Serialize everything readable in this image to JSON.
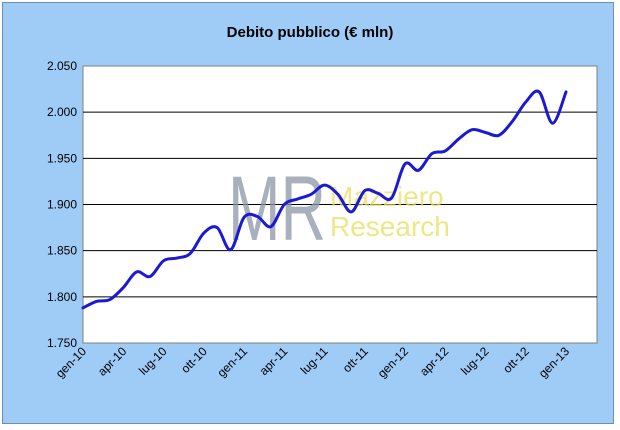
{
  "chart_data": {
    "type": "line",
    "title": "Debito pubblico (€ mln)",
    "xlabel": "",
    "ylabel": "",
    "ylim": [
      1750,
      2050
    ],
    "yticks": [
      1750,
      1800,
      1850,
      1900,
      1950,
      2000,
      2050
    ],
    "ytick_labels": [
      "1.750",
      "1.800",
      "1.850",
      "1.900",
      "1.950",
      "2.000",
      "2.050"
    ],
    "xtick_labels": [
      "gen-10",
      "apr-10",
      "lug-10",
      "ott-10",
      "gen-11",
      "apr-11",
      "lug-11",
      "ott-11",
      "gen-12",
      "apr-12",
      "lug-12",
      "ott-12",
      "gen-13"
    ],
    "grid": "horizontal",
    "legend": "none",
    "series": [
      {
        "x": [
          "gen-10",
          "feb-10",
          "mar-10",
          "apr-10",
          "mag-10",
          "giu-10",
          "lug-10",
          "ago-10",
          "set-10",
          "ott-10",
          "nov-10",
          "dic-10",
          "gen-11",
          "feb-11",
          "mar-11",
          "apr-11",
          "mag-11",
          "giu-11",
          "lug-11",
          "ago-11",
          "set-11",
          "ott-11",
          "nov-11",
          "dic-11",
          "gen-12",
          "feb-12",
          "mar-12",
          "apr-12",
          "mag-12",
          "giu-12",
          "lug-12",
          "ago-12",
          "set-12",
          "ott-12",
          "nov-12",
          "dic-12",
          "gen-13"
        ],
        "values": [
          1788,
          1795,
          1797,
          1810,
          1827,
          1822,
          1839,
          1842,
          1847,
          1869,
          1875,
          1851,
          1886,
          1887,
          1876,
          1900,
          1906,
          1911,
          1921,
          1911,
          1892,
          1915,
          1912,
          1907,
          1944,
          1937,
          1955,
          1958,
          1971,
          1981,
          1978,
          1975,
          1990,
          2011,
          2022,
          1988,
          2022
        ],
        "color": "#1a1ad4"
      }
    ]
  },
  "watermark": {
    "logo_letters": "MR",
    "line1": "Mazziero",
    "line2": "Research",
    "logo_color": "#8a96a6",
    "text_color": "#e8e060"
  },
  "colors": {
    "background": "#9fccf7",
    "plot_area": "#ffffff",
    "line": "#1a1ad4",
    "grid": "#000000"
  }
}
